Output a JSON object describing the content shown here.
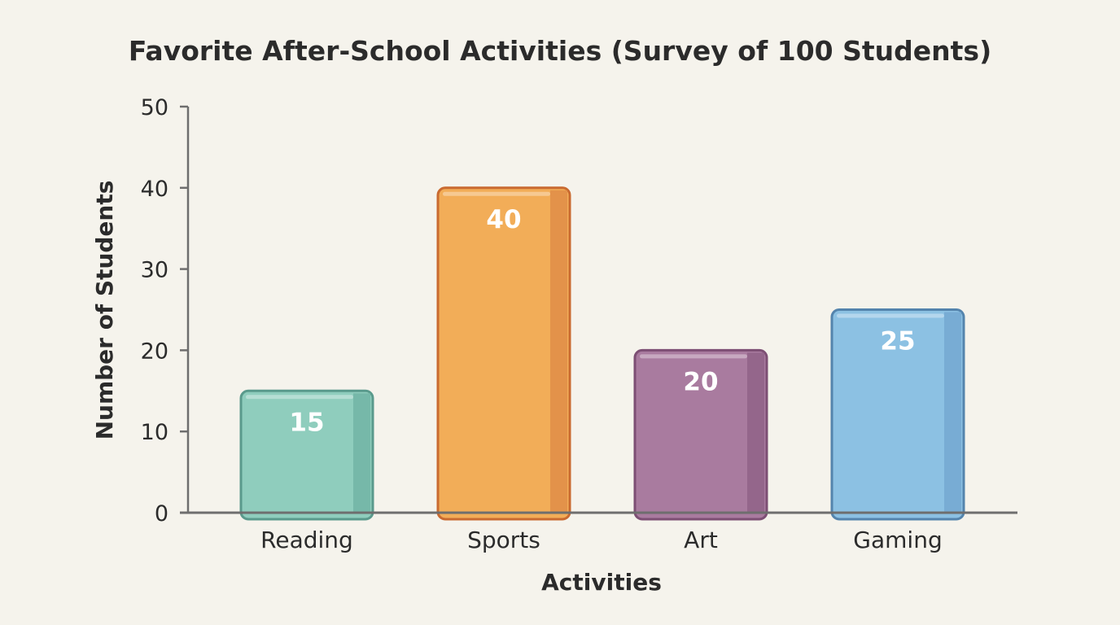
{
  "chart_data": {
    "type": "bar",
    "title": "Favorite After-School Activities (Survey of 100 Students)",
    "xlabel": "Activities",
    "ylabel": "Number of Students",
    "categories": [
      "Reading",
      "Sports",
      "Art",
      "Gaming"
    ],
    "values": [
      15,
      40,
      20,
      25
    ],
    "data_labels": [
      "15",
      "40",
      "20",
      "25"
    ],
    "ylim": [
      0,
      50
    ],
    "yticks": [
      0,
      10,
      20,
      30,
      40,
      50
    ],
    "ytick_labels": [
      "0",
      "10",
      "20",
      "30",
      "40",
      "50"
    ],
    "grid": false,
    "legend": "none",
    "colors": [
      {
        "fill": "#8fcdbd",
        "shade": "#76b8a9",
        "stroke": "#5a9a8c"
      },
      {
        "fill": "#f2ad58",
        "shade": "#e3924a",
        "stroke": "#c96a30"
      },
      {
        "fill": "#a97b9f",
        "shade": "#94668b",
        "stroke": "#7d4f74"
      },
      {
        "fill": "#8cc1e3",
        "shade": "#78acd4",
        "stroke": "#5484ad"
      }
    ],
    "background": "#f5f3ec"
  }
}
